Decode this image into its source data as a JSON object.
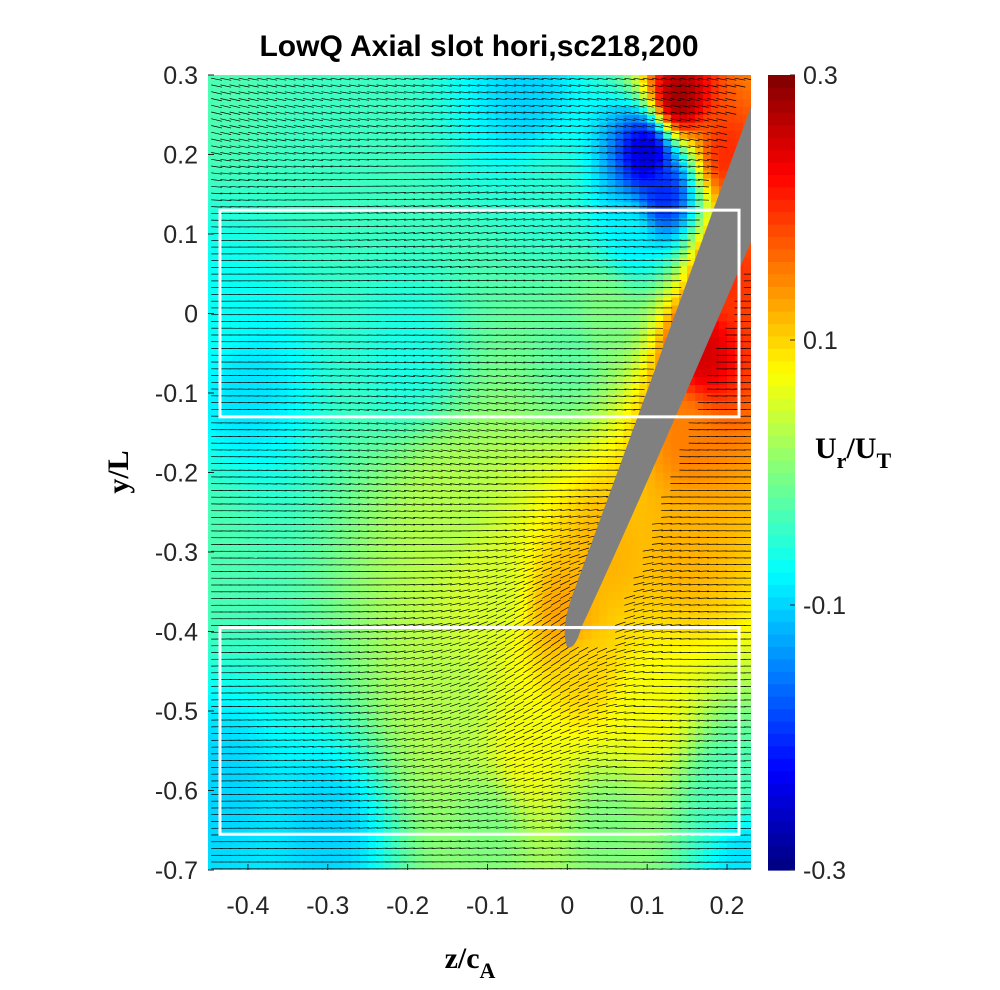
{
  "chart_data": {
    "type": "heatmap",
    "title": "LowQ Axial slot hori,sc218,200",
    "xlabel": {
      "main": "z/c",
      "sub": "A"
    },
    "ylabel": "y/L",
    "colorbar_label": {
      "u": "U",
      "u_sub": "r",
      "slash": "/",
      "t": "U",
      "t_sub": "T"
    },
    "xlim": [
      -0.45,
      0.23
    ],
    "ylim": [
      -0.7,
      0.3
    ],
    "clim": [
      -0.3,
      0.3
    ],
    "colormap": "jet",
    "x_ticks": [
      -0.4,
      -0.3,
      -0.2,
      -0.1,
      0,
      0.1,
      0.2
    ],
    "x_tick_labels": [
      "-0.4",
      "-0.3",
      "-0.2",
      "-0.1",
      "0",
      "0.1",
      "0.2"
    ],
    "y_ticks": [
      0.3,
      0.2,
      0.1,
      0,
      -0.1,
      -0.2,
      -0.3,
      -0.4,
      -0.5,
      -0.6,
      -0.7
    ],
    "y_tick_labels": [
      "0.3",
      "0.2",
      "0.1",
      "0",
      "-0.1",
      "-0.2",
      "-0.3",
      "-0.4",
      "-0.5",
      "-0.6",
      "-0.7"
    ],
    "colorbar_ticks": [
      0.3,
      0.1,
      -0.1,
      -0.3
    ],
    "colorbar_tick_labels": [
      "0.3",
      "0.1",
      "-0.1",
      "-0.3"
    ],
    "field_anchors": [
      {
        "z": -0.44,
        "y": 0.28,
        "value": -0.03
      },
      {
        "z": -0.44,
        "y": 0.0,
        "value": -0.07
      },
      {
        "z": -0.4,
        "y": -0.1,
        "value": -0.09
      },
      {
        "z": -0.44,
        "y": -0.3,
        "value": -0.03
      },
      {
        "z": -0.44,
        "y": -0.6,
        "value": -0.1
      },
      {
        "z": -0.3,
        "y": -0.65,
        "value": -0.1
      },
      {
        "z": -0.3,
        "y": 0.2,
        "value": -0.04
      },
      {
        "z": -0.2,
        "y": -0.05,
        "value": -0.06
      },
      {
        "z": -0.15,
        "y": -0.25,
        "value": 0.03
      },
      {
        "z": -0.1,
        "y": -0.35,
        "value": 0.05
      },
      {
        "z": -0.15,
        "y": -0.5,
        "value": 0.03
      },
      {
        "z": -0.1,
        "y": -0.65,
        "value": 0.0
      },
      {
        "z": -0.05,
        "y": -0.55,
        "value": 0.07
      },
      {
        "z": -0.05,
        "y": 0.27,
        "value": -0.1
      },
      {
        "z": -0.02,
        "y": 0.15,
        "value": -0.05
      },
      {
        "z": 0.0,
        "y": -0.05,
        "value": -0.02
      },
      {
        "z": 0.0,
        "y": -0.38,
        "value": 0.13
      },
      {
        "z": 0.02,
        "y": -0.45,
        "value": 0.1
      },
      {
        "z": 0.05,
        "y": -0.3,
        "value": 0.12
      },
      {
        "z": 0.1,
        "y": -0.5,
        "value": 0.07
      },
      {
        "z": 0.05,
        "y": -0.65,
        "value": 0.0
      },
      {
        "z": 0.2,
        "y": -0.6,
        "value": -0.03
      },
      {
        "z": 0.22,
        "y": -0.68,
        "value": -0.09
      },
      {
        "z": 0.15,
        "y": -0.3,
        "value": 0.12
      },
      {
        "z": 0.15,
        "y": -0.15,
        "value": 0.15
      },
      {
        "z": 0.17,
        "y": -0.05,
        "value": 0.25
      },
      {
        "z": 0.2,
        "y": 0.05,
        "value": 0.2
      },
      {
        "z": 0.2,
        "y": 0.2,
        "value": 0.2
      },
      {
        "z": 0.14,
        "y": 0.27,
        "value": 0.28
      },
      {
        "z": 0.1,
        "y": 0.2,
        "value": -0.25
      },
      {
        "z": 0.12,
        "y": 0.15,
        "value": -0.2
      },
      {
        "z": 0.08,
        "y": 0.1,
        "value": -0.08
      },
      {
        "z": 0.05,
        "y": 0.0,
        "value": 0.0
      }
    ],
    "blade": {
      "leading_edge": {
        "z": 0.0,
        "y": -0.42
      },
      "top_edge": {
        "z": 0.23,
        "y": 0.26
      },
      "top_edge_lower": {
        "z": 0.23,
        "y": 0.09
      },
      "color": "#808080"
    },
    "boxes": [
      {
        "name": "upper-region",
        "z": [
          -0.435,
          0.215
        ],
        "y": [
          -0.13,
          0.13
        ]
      },
      {
        "name": "lower-region",
        "z": [
          -0.435,
          0.215
        ],
        "y": [
          -0.655,
          -0.395
        ]
      }
    ],
    "box_color": "#ffffff",
    "arrow_color": "#000000"
  }
}
